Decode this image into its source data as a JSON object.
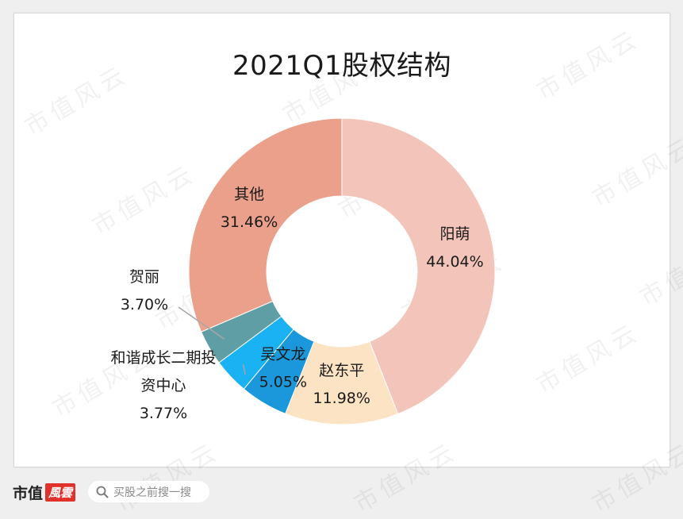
{
  "chart_data": {
    "type": "pie",
    "variant": "donut",
    "title": "2021Q1股权结构",
    "slices": [
      {
        "label": "阳萌",
        "value": 44.04,
        "value_label": "44.04%",
        "color": "#f3c4b9"
      },
      {
        "label": "赵东平",
        "value": 11.98,
        "value_label": "11.98%",
        "color": "#fbe3c4"
      },
      {
        "label": "吴文龙",
        "value": 5.05,
        "value_label": "5.05%",
        "color": "#1a98db"
      },
      {
        "label": "和谐成长二期投资中心",
        "label_lines": [
          "和谐成长二期投",
          "资中心"
        ],
        "value": 3.77,
        "value_label": "3.77%",
        "color": "#1ab2f2"
      },
      {
        "label": "贺丽",
        "value": 3.7,
        "value_label": "3.70%",
        "color": "#5f9ea5"
      },
      {
        "label": "其他",
        "value": 31.46,
        "value_label": "31.46%",
        "color": "#eba08c"
      }
    ],
    "start_angle": "top",
    "direction": "clockwise"
  },
  "watermark": {
    "text": "市值风云"
  },
  "footer": {
    "brand": "市值",
    "brand_badge": "風雲",
    "search_placeholder": "买股之前搜一搜",
    "icon": "search-icon"
  }
}
